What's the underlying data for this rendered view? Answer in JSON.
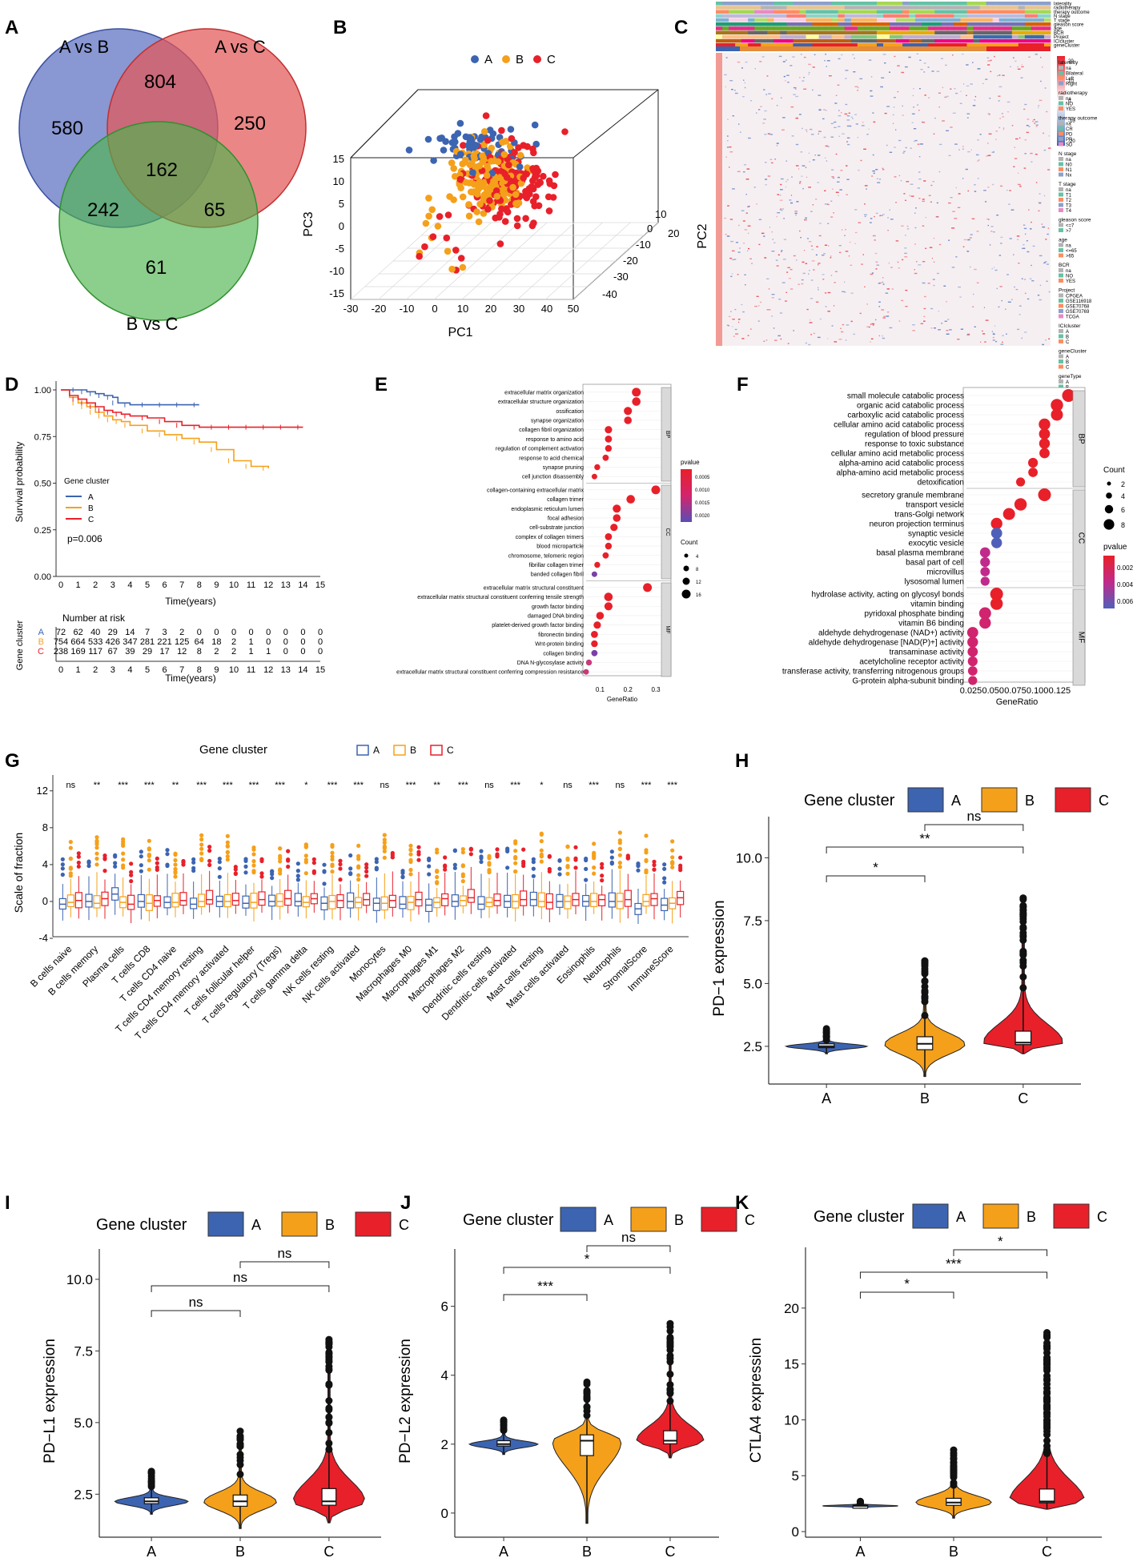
{
  "panels": {
    "A": "A",
    "B": "B",
    "C": "C",
    "D": "D",
    "E": "E",
    "F": "F",
    "G": "G",
    "H": "H",
    "I": "I",
    "J": "J",
    "K": "K"
  },
  "colors": {
    "A": "#3c64b1",
    "B": "#f5a01a",
    "C": "#e8202a"
  },
  "common": {
    "gene_cluster": "Gene cluster",
    "group_a": "A",
    "group_b": "B",
    "group_c": "C"
  },
  "chart_data": [
    {
      "panel": "A",
      "type": "venn",
      "sets": [
        {
          "name": "A vs B",
          "color": "#5b6fc0"
        },
        {
          "name": "A vs C",
          "color": "#e35757"
        },
        {
          "name": "B vs C",
          "color": "#4fb44f"
        }
      ],
      "regions": {
        "A_only": "580",
        "C_only": "250",
        "BC_only": "61",
        "AB_AC": "804",
        "AB_BC": "242",
        "AC_BC": "65",
        "all": "162"
      }
    },
    {
      "panel": "B",
      "type": "scatter3d",
      "legend": [
        "A",
        "B",
        "C"
      ],
      "xlabel": "PC1",
      "ylabel": "PC2",
      "zlabel": "PC3",
      "xticks": [
        "-30",
        "-20",
        "-10",
        "0",
        "10",
        "20",
        "30",
        "40",
        "50"
      ],
      "yticks": [
        "-40",
        "-30",
        "-20",
        "-10",
        "0",
        "10",
        "20"
      ],
      "zticks": [
        "-15",
        "-10",
        "-5",
        "0",
        "5",
        "10",
        "15"
      ]
    },
    {
      "panel": "C",
      "type": "heatmap",
      "top_tracks": [
        "laterality",
        "radiotherapy",
        "therapy outcome",
        "N stage",
        "T stage",
        "gleason score",
        "age",
        "BCR",
        "Project",
        "ICIcluster",
        "geneCluster"
      ],
      "scale_ticks": [
        "20",
        "10",
        "0",
        "-10",
        "-20"
      ],
      "legend": [
        {
          "title": "laterality",
          "items": [
            "na",
            "Bilateral",
            "Left",
            "Right"
          ]
        },
        {
          "title": "radiotherapy",
          "items": [
            "na",
            "NO",
            "YES"
          ]
        },
        {
          "title": "therapy outcome",
          "items": [
            "na",
            "CR",
            "PD",
            "PR",
            "SD"
          ]
        },
        {
          "title": "N stage",
          "items": [
            "na",
            "N0",
            "N1",
            "Nx"
          ]
        },
        {
          "title": "T stage",
          "items": [
            "na",
            "T1",
            "T2",
            "T3",
            "T4"
          ]
        },
        {
          "title": "gleason score",
          "items": [
            "<=7",
            ">7"
          ]
        },
        {
          "title": "age",
          "items": [
            "na",
            "<=65",
            ">65"
          ]
        },
        {
          "title": "BCR",
          "items": [
            "na",
            "NO",
            "YES"
          ]
        },
        {
          "title": "Project",
          "items": [
            "CPGEA",
            "GSE116918",
            "GSE70768",
            "GSE70769",
            "TCGA"
          ]
        },
        {
          "title": "ICIcluster",
          "items": [
            "A",
            "B",
            "C"
          ]
        },
        {
          "title": "geneCluster",
          "items": [
            "A",
            "B",
            "C"
          ]
        },
        {
          "title": "geneType",
          "items": [
            "A",
            "B"
          ]
        }
      ]
    },
    {
      "panel": "D",
      "type": "line",
      "title": "",
      "xlabel": "Time(years)",
      "ylabel": "Survival probability",
      "xlim": [
        0,
        15
      ],
      "ylim": [
        0,
        1
      ],
      "yticks": [
        "0.00",
        "0.25",
        "0.50",
        "0.75",
        "1.00"
      ],
      "xticks": [
        "0",
        "1",
        "2",
        "3",
        "4",
        "5",
        "6",
        "7",
        "8",
        "9",
        "10",
        "11",
        "12",
        "13",
        "14",
        "15"
      ],
      "pvalue": "p=0.006",
      "series": [
        {
          "name": "A",
          "x": [
            0,
            0.5,
            1,
            1.5,
            2,
            2.5,
            3,
            3.3,
            4,
            5,
            6,
            7,
            8
          ],
          "y": [
            1,
            1,
            1,
            0.99,
            0.98,
            0.97,
            0.96,
            0.93,
            0.92,
            0.92,
            0.92,
            0.92,
            0.92
          ]
        },
        {
          "name": "B",
          "x": [
            0,
            0.5,
            1,
            1.5,
            2,
            2.5,
            3,
            3.5,
            4,
            5,
            6,
            7,
            8,
            9,
            10,
            11,
            12
          ],
          "y": [
            1,
            0.96,
            0.93,
            0.91,
            0.88,
            0.86,
            0.84,
            0.83,
            0.81,
            0.78,
            0.76,
            0.74,
            0.72,
            0.68,
            0.62,
            0.59,
            0.58
          ]
        },
        {
          "name": "C",
          "x": [
            0,
            0.5,
            1,
            1.5,
            2,
            2.5,
            3,
            3.5,
            4,
            5,
            6,
            7,
            8,
            9,
            10,
            11,
            12,
            13,
            14
          ],
          "y": [
            1,
            0.97,
            0.95,
            0.93,
            0.91,
            0.89,
            0.88,
            0.87,
            0.86,
            0.85,
            0.83,
            0.81,
            0.8,
            0.8,
            0.8,
            0.8,
            0.8,
            0.8,
            0.8
          ]
        }
      ],
      "risk_table": {
        "title": "Number at risk",
        "ylabel": "Gene cluster",
        "rows": [
          {
            "name": "A",
            "values": [
              "72",
              "62",
              "40",
              "29",
              "14",
              "7",
              "3",
              "2",
              "0",
              "0",
              "0",
              "0",
              "0",
              "0",
              "0",
              "0"
            ]
          },
          {
            "name": "B",
            "values": [
              "754",
              "664",
              "533",
              "426",
              "347",
              "281",
              "221",
              "125",
              "64",
              "18",
              "2",
              "1",
              "0",
              "0",
              "0",
              "0"
            ]
          },
          {
            "name": "C",
            "values": [
              "238",
              "169",
              "117",
              "67",
              "39",
              "29",
              "17",
              "12",
              "8",
              "2",
              "2",
              "1",
              "1",
              "0",
              "0",
              "0"
            ]
          }
        ]
      }
    },
    {
      "panel": "E",
      "type": "scatter",
      "xlabel": "GeneRatio",
      "xticks": [
        "0.1",
        "0.2",
        "0.3"
      ],
      "xlim": [
        0.05,
        0.32
      ],
      "groups": [
        {
          "name": "BP",
          "terms": [
            "extracellular matrix organization",
            "extracellular structure organization",
            "ossification",
            "synapse organization",
            "collagen fibril organization",
            "response to amino acid",
            "regulation of complement activation",
            "response to acid chemical",
            "synapse pruning",
            "cell junction disassembly"
          ],
          "x": [
            0.23,
            0.23,
            0.2,
            0.2,
            0.13,
            0.13,
            0.13,
            0.12,
            0.09,
            0.08
          ]
        },
        {
          "name": "CC",
          "terms": [
            "collagen-containing extracellular matrix",
            "collagen trimer",
            "endoplasmic reticulum lumen",
            "focal adhesion",
            "cell-substrate junction",
            "complex of collagen trimers",
            "blood microparticle",
            "chromosome, telomeric region",
            "fibrillar collagen trimer",
            "banded collagen fibril"
          ],
          "x": [
            0.3,
            0.21,
            0.16,
            0.16,
            0.15,
            0.13,
            0.13,
            0.12,
            0.09,
            0.08
          ]
        },
        {
          "name": "MF",
          "terms": [
            "extracellular matrix structural constituent",
            "extracellular matrix structural constituent conferring tensile strength",
            "growth factor binding",
            "damaged DNA binding",
            "platelet-derived growth factor binding",
            "fibronectin binding",
            "Wnt-protein binding",
            "collagen binding",
            "DNA N-glycosylase activity",
            "extracellular matrix structural constituent conferring compression resistance"
          ],
          "x": [
            0.27,
            0.13,
            0.13,
            0.1,
            0.09,
            0.08,
            0.08,
            0.08,
            0.06,
            0.05
          ]
        }
      ],
      "pvalue_legend": {
        "title": "pvalue",
        "ticks": [
          "0.0005",
          "0.0010",
          "0.0015",
          "0.0020"
        ]
      },
      "count_legend": {
        "title": "Count",
        "ticks": [
          "4",
          "8",
          "12",
          "16"
        ]
      }
    },
    {
      "panel": "F",
      "type": "scatter",
      "xlabel": "GeneRatio",
      "xticks": [
        "0.025",
        "0.050",
        "0.075",
        "0.100",
        "0.125"
      ],
      "xlim": [
        0.02,
        0.14
      ],
      "groups": [
        {
          "name": "BP",
          "terms": [
            "small molecule catabolic process",
            "organic acid catabolic process",
            "carboxylic acid catabolic process",
            "cellular amino acid catabolic process",
            "regulation of blood pressure",
            "response to toxic substance",
            "cellular amino acid metabolic process",
            "alpha-amino acid catabolic process",
            "alpha-amino acid metabolic process",
            "detoxification"
          ],
          "x": [
            0.135,
            0.122,
            0.122,
            0.108,
            0.108,
            0.108,
            0.108,
            0.095,
            0.095,
            0.081
          ]
        },
        {
          "name": "CC",
          "terms": [
            "secretory granule membrane",
            "transport vesicle",
            "trans-Golgi network",
            "neuron projection terminus",
            "synaptic vesicle",
            "exocytic vesicle",
            "basal plasma membrane",
            "basal part of cell",
            "microvillus",
            "lysosomal lumen"
          ],
          "x": [
            0.108,
            0.081,
            0.068,
            0.054,
            0.054,
            0.054,
            0.041,
            0.041,
            0.041,
            0.041
          ]
        },
        {
          "name": "MF",
          "terms": [
            "hydrolase activity, acting on glycosyl bonds",
            "vitamin binding",
            "pyridoxal phosphate binding",
            "vitamin B6 binding",
            "aldehyde dehydrogenase (NAD+) activity",
            "aldehyde dehydrogenase [NAD(P)+] activity",
            "transaminase activity",
            "acetylcholine receptor activity",
            "transferase activity, transferring nitrogenous groups",
            "G-protein alpha-subunit binding"
          ],
          "x": [
            0.054,
            0.054,
            0.041,
            0.041,
            0.027,
            0.027,
            0.027,
            0.027,
            0.027,
            0.027
          ]
        }
      ],
      "count_legend": {
        "title": "Count",
        "ticks": [
          "2",
          "4",
          "6",
          "8"
        ]
      },
      "pvalue_legend": {
        "title": "pvalue",
        "ticks": [
          "0.002",
          "0.004",
          "0.006"
        ]
      }
    },
    {
      "panel": "G",
      "type": "box",
      "ylabel": "Scale of fraction",
      "ylim": [
        -4,
        12.5
      ],
      "yticks": [
        "-4",
        "0",
        "4",
        "8",
        "12"
      ],
      "categories": [
        "B cells naive",
        "B cells memory",
        "Plasma cells",
        "T cells CD8",
        "T cells CD4 naive",
        "T cells CD4 memory resting",
        "T cells CD4 memory activated",
        "T cells follicular helper",
        "T cells regulatory (Tregs)",
        "T cells gamma delta",
        "NK cells resting",
        "NK cells activated",
        "Monocytes",
        "Macrophages M0",
        "Macrophages M1",
        "Macrophages M2",
        "Dendritic cells resting",
        "Dendritic cells activated",
        "Mast cells resting",
        "Mast cells activated",
        "Eosinophils",
        "Neutrophils",
        "StromalScore",
        "ImmuneScore"
      ],
      "significance": [
        "ns",
        "**",
        "***",
        "***",
        "**",
        "***",
        "***",
        "***",
        "***",
        "*",
        "***",
        "***",
        "ns",
        "***",
        "**",
        "***",
        "ns",
        "***",
        "*",
        "ns",
        "***",
        "ns",
        "***",
        "***"
      ],
      "series": [
        {
          "name": "A",
          "medians": [
            -0.3,
            0.0,
            0.8,
            0.0,
            -0.1,
            -0.3,
            0.0,
            -0.2,
            0.0,
            0.0,
            -0.2,
            0.0,
            -0.2,
            -0.3,
            -0.4,
            0.0,
            -0.3,
            0.0,
            0.2,
            0.0,
            0.0,
            0.0,
            -0.8,
            -0.4
          ]
        },
        {
          "name": "B",
          "medians": [
            -0.1,
            -0.2,
            -0.1,
            -0.2,
            -0.1,
            0.0,
            0.0,
            -0.1,
            0.0,
            -0.1,
            0.0,
            -0.1,
            -0.2,
            -0.1,
            -0.1,
            0.1,
            -0.1,
            0.0,
            0.0,
            0.0,
            0.0,
            0.0,
            0.0,
            -0.2
          ]
        },
        {
          "name": "C",
          "medians": [
            0.1,
            0.3,
            -0.3,
            0.1,
            0.1,
            0.2,
            0.1,
            0.2,
            0.3,
            0.3,
            0.1,
            0.2,
            0.1,
            0.2,
            0.3,
            0.4,
            0.1,
            0.2,
            -0.1,
            0.2,
            0.2,
            0.2,
            0.3,
            0.4
          ]
        }
      ]
    },
    {
      "panel": "H",
      "type": "violin",
      "ylabel": "PD−1 expression",
      "ylim": [
        1,
        11
      ],
      "yticks": [
        "2.5",
        "5.0",
        "7.5",
        "10.0"
      ],
      "categories": [
        "A",
        "B",
        "C"
      ],
      "medians": [
        2.5,
        2.6,
        2.65
      ],
      "max": [
        3.2,
        5.9,
        8.4
      ],
      "min": [
        2.2,
        1.3,
        2.2
      ],
      "comparisons": [
        {
          "pair": "A-B",
          "label": "*"
        },
        {
          "pair": "A-C",
          "label": "**"
        },
        {
          "pair": "B-C",
          "label": "ns"
        }
      ]
    },
    {
      "panel": "I",
      "type": "violin",
      "ylabel": "PD−L1 expression",
      "ylim": [
        1,
        10.5
      ],
      "yticks": [
        "2.5",
        "5.0",
        "7.5",
        "10.0"
      ],
      "categories": [
        "A",
        "B",
        "C"
      ],
      "medians": [
        2.25,
        2.25,
        2.25
      ],
      "max": [
        3.3,
        4.7,
        7.9
      ],
      "min": [
        1.8,
        1.3,
        1.5
      ],
      "comparisons": [
        {
          "pair": "A-B",
          "label": "ns"
        },
        {
          "pair": "A-C",
          "label": "ns"
        },
        {
          "pair": "B-C",
          "label": "ns"
        }
      ]
    },
    {
      "panel": "J",
      "type": "violin",
      "ylabel": "PD−L2 expression",
      "ylim": [
        -0.7,
        7.2
      ],
      "yticks": [
        "0",
        "2",
        "4",
        "6"
      ],
      "categories": [
        "A",
        "B",
        "C"
      ],
      "medians": [
        2.0,
        2.1,
        2.1
      ],
      "max": [
        2.7,
        3.8,
        5.5
      ],
      "min": [
        1.7,
        -0.3,
        1.6
      ],
      "comparisons": [
        {
          "pair": "A-B",
          "label": "***"
        },
        {
          "pair": "A-C",
          "label": "*"
        },
        {
          "pair": "B-C",
          "label": "ns"
        }
      ]
    },
    {
      "panel": "K",
      "type": "violin",
      "ylabel": "CTLA4 expression",
      "ylim": [
        -0.5,
        24
      ],
      "yticks": [
        "0",
        "5",
        "10",
        "15",
        "20"
      ],
      "categories": [
        "A",
        "B",
        "C"
      ],
      "medians": [
        2.3,
        2.6,
        2.7
      ],
      "max": [
        2.7,
        7.3,
        17.8
      ],
      "min": [
        2.1,
        1.2,
        2.0
      ],
      "comparisons": [
        {
          "pair": "A-B",
          "label": "*"
        },
        {
          "pair": "A-C",
          "label": "***"
        },
        {
          "pair": "B-C",
          "label": "*"
        }
      ]
    }
  ]
}
